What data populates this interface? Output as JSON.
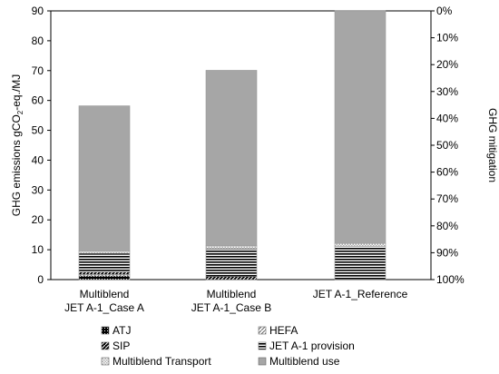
{
  "chart_data": {
    "type": "bar",
    "stacked": true,
    "categories": [
      [
        "Multiblend",
        "JET A-1_Case A"
      ],
      [
        "Multiblend",
        "JET A-1_Case B"
      ],
      [
        "JET A-1_Reference"
      ]
    ],
    "ylabel_left": "GHG emissions gCO₂-eq./MJ",
    "ylabel_left_parts": {
      "pre": "GHG emissions gCO",
      "sub": "2",
      "post": "-eq./MJ"
    },
    "ylabel_right": "GHG mitigation",
    "ylim": [
      0,
      90
    ],
    "yticks_left": [
      "0",
      "10",
      "20",
      "30",
      "40",
      "50",
      "60",
      "70",
      "80",
      "90"
    ],
    "yticks_right": [
      "100%",
      "90%",
      "80%",
      "70%",
      "60%",
      "50%",
      "40%",
      "30%",
      "20%",
      "10%",
      "0%"
    ],
    "legend_position": "bottom",
    "series": [
      {
        "name": "ATJ",
        "values": [
          1.2,
          0,
          0
        ],
        "color": "#000000",
        "pattern": "dots"
      },
      {
        "name": "HEFA",
        "values": [
          0.5,
          0,
          0
        ],
        "color": "#bbbbbb",
        "pattern": "diag"
      },
      {
        "name": "SIP",
        "values": [
          0.8,
          1.0,
          0
        ],
        "color": "#000000",
        "pattern": "diagblack"
      },
      {
        "name": "JET A-1 provision",
        "values": [
          6.3,
          9.4,
          11.2
        ],
        "color": "#000000",
        "pattern": "hstripes"
      },
      {
        "name": "Multiblend Transport",
        "values": [
          0.8,
          0.9,
          0.9
        ],
        "color": "#cccccc",
        "pattern": "checker"
      },
      {
        "name": "Multiblend use",
        "values": [
          48.6,
          58.8,
          77.9
        ],
        "color": "#a6a6a6",
        "pattern": "solid"
      }
    ]
  }
}
